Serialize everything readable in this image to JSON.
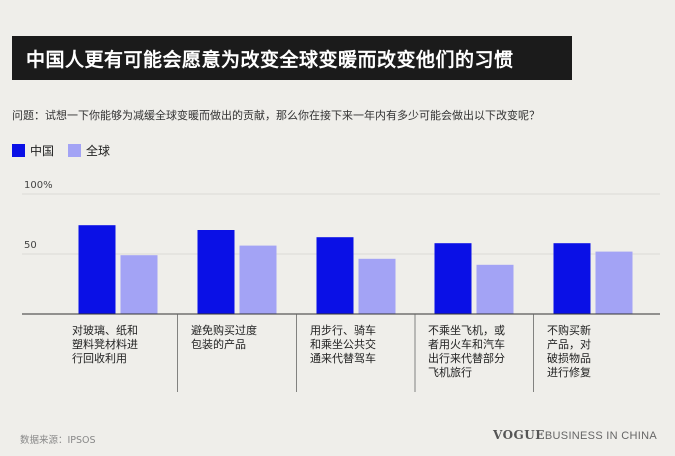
{
  "title": "中国人更有可能会愿意为改变全球变暖而改变他们的习惯",
  "question": "问题：试想一下你能够为减缓全球变暖而做出的贡献，那么你在接下来一年内有多少可能会做出以下改变呢？",
  "footer": {
    "source": "数据来源：IPSOS",
    "brand_vogue": "VOGUE",
    "brand_rest": "BUSINESS IN CHINA"
  },
  "colors": {
    "china": "#0a10e6",
    "global": "#a3a3f5",
    "axis": "#333333",
    "grid": "#c8c8c4"
  },
  "chart_data": {
    "type": "bar",
    "categories": [
      "对玻璃、纸和塑料凳材料进行回收利用",
      "避免购买过度包装的产品",
      "用步行、骑车和乘坐公共交通来代替驾车",
      "不乘坐飞机，或者用火车和汽车出行来代替部分飞机旅行",
      "不购买新产品，对破损物品进行修复"
    ],
    "category_lines": [
      [
        "对玻璃、纸和",
        "塑料凳材料进",
        "行回收利用"
      ],
      [
        "避免购买过度",
        "包装的产品"
      ],
      [
        "用步行、骑车",
        "和乘坐公共交",
        "通来代替驾车"
      ],
      [
        "不乘坐飞机，或",
        "者用火车和汽车",
        "出行来代替部分",
        "飞机旅行"
      ],
      [
        "不购买新",
        "产品，对",
        "破损物品",
        "进行修复"
      ]
    ],
    "series": [
      {
        "name": "中国",
        "values": [
          74,
          70,
          64,
          59,
          59
        ]
      },
      {
        "name": "全球",
        "values": [
          49,
          57,
          46,
          41,
          52
        ]
      }
    ],
    "ylim": [
      0,
      100
    ],
    "ytick_labels": [
      "100%",
      "50"
    ],
    "ytick_values": [
      100,
      50
    ],
    "legend_position": "top-left"
  }
}
